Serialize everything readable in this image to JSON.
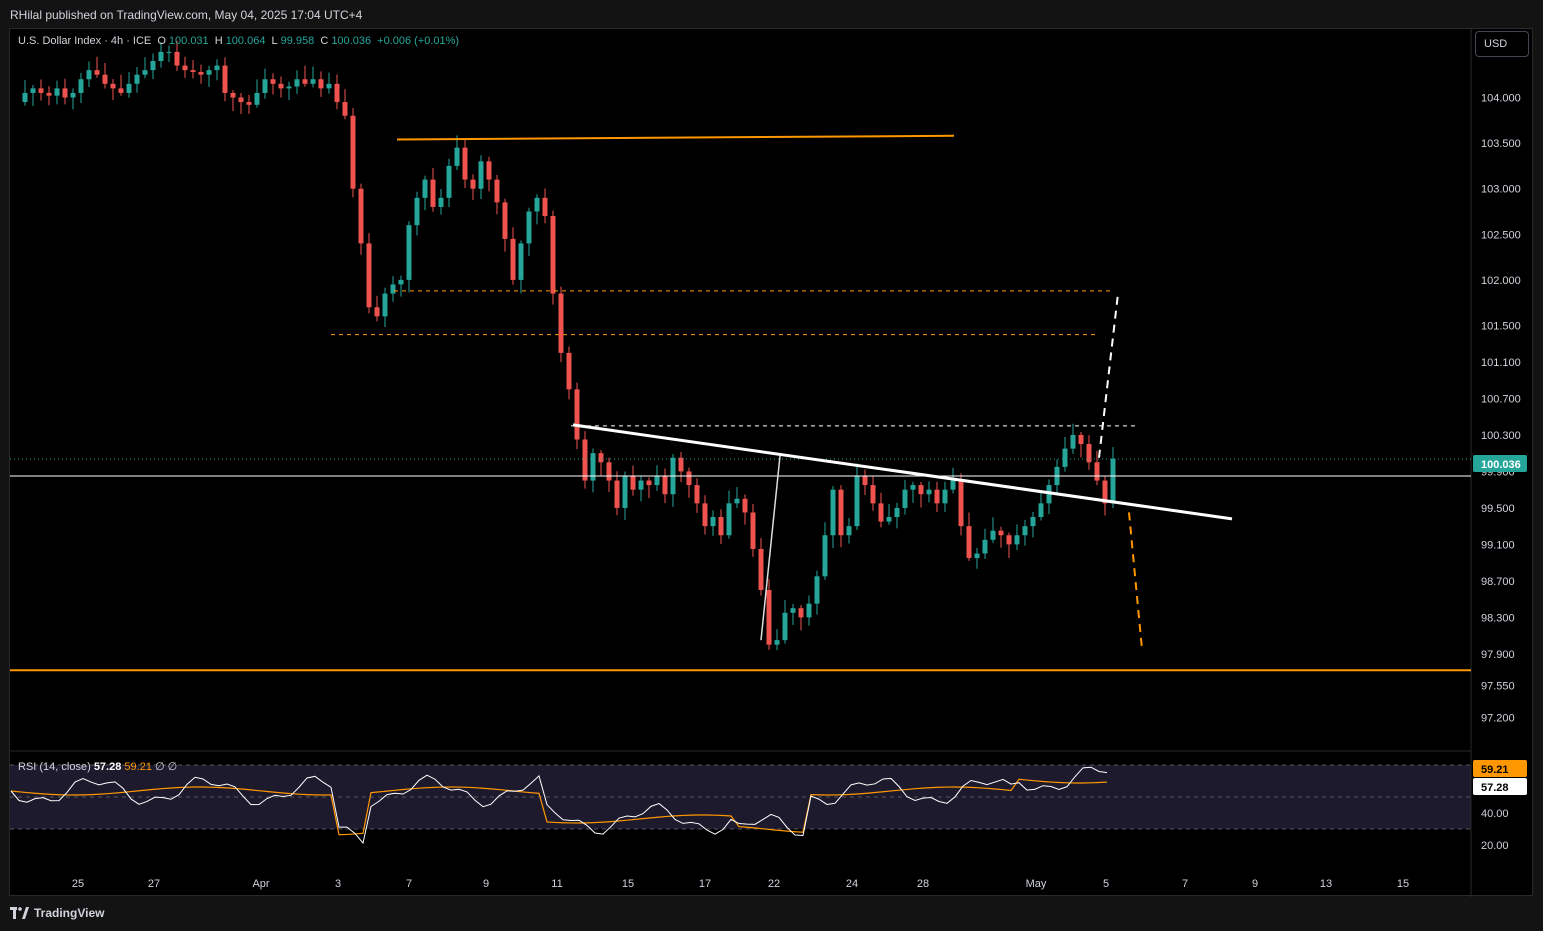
{
  "header": {
    "published": "RHilal published on TradingView.com, May 04, 2025 17:04 UTC+4"
  },
  "legend": {
    "symbol": "U.S. Dollar Index · 4h · ICE",
    "o_label": "O",
    "o": "100.031",
    "h_label": "H",
    "h": "100.064",
    "l_label": "L",
    "l": "99.958",
    "c_label": "C",
    "c": "100.036",
    "change": "+0.006 (+0.01%)"
  },
  "currency_button": "USD",
  "rsi_legend": {
    "label": "RSI (14, close)",
    "value": "57.28",
    "ma_value": "59.21",
    "extra": "∅ ∅"
  },
  "footer": {
    "brand": "TradingView"
  },
  "colors": {
    "up": "#26a69a",
    "down": "#ef5350",
    "orange": "#ff9800",
    "white": "#ffffff",
    "rsi_band": "#1e1a2e",
    "bg": "#000000"
  },
  "chart_data": {
    "type": "candlestick",
    "price_axis_labels": [
      "104.000",
      "103.500",
      "103.000",
      "102.500",
      "102.000",
      "101.500",
      "101.100",
      "100.700",
      "100.300",
      "99.900",
      "99.500",
      "99.100",
      "98.700",
      "98.300",
      "97.900",
      "97.550",
      "97.200"
    ],
    "time_axis_labels": [
      "25",
      "27",
      "Apr",
      "3",
      "7",
      "9",
      "11",
      "15",
      "17",
      "22",
      "24",
      "28",
      "May",
      "5",
      "7",
      "9",
      "13",
      "15"
    ],
    "current_price": "100.036",
    "rsi_axis_labels": [
      "40.00",
      "20.00"
    ],
    "rsi_value_label": "57.28",
    "rsi_ma_label": "59.21",
    "drawings": {
      "orange_top_level": 103.55,
      "orange_bottom_level": 97.72,
      "dashed_orange_1": 101.88,
      "dashed_orange_2": 101.4,
      "dashed_white_level": 100.4,
      "horizontal_white_level": 99.85
    },
    "candle_path": [
      [
        0,
        103.95
      ],
      [
        8,
        104.05
      ],
      [
        16,
        104.1
      ],
      [
        24,
        104.05
      ],
      [
        32,
        104.02
      ],
      [
        40,
        104.1
      ],
      [
        48,
        104.0
      ],
      [
        56,
        104.05
      ],
      [
        64,
        104.2
      ],
      [
        72,
        104.3
      ],
      [
        80,
        104.25
      ],
      [
        88,
        104.15
      ],
      [
        96,
        104.1
      ],
      [
        104,
        104.05
      ],
      [
        112,
        104.15
      ],
      [
        120,
        104.25
      ],
      [
        128,
        104.3
      ],
      [
        136,
        104.4
      ],
      [
        144,
        104.5
      ],
      [
        152,
        104.5
      ],
      [
        160,
        104.35
      ],
      [
        168,
        104.3
      ],
      [
        176,
        104.28
      ],
      [
        184,
        104.25
      ],
      [
        192,
        104.3
      ],
      [
        200,
        104.35
      ],
      [
        208,
        104.05
      ],
      [
        216,
        104.0
      ],
      [
        224,
        103.95
      ],
      [
        232,
        103.92
      ],
      [
        240,
        104.05
      ],
      [
        248,
        104.2
      ],
      [
        256,
        104.15
      ],
      [
        264,
        104.1
      ],
      [
        272,
        104.12
      ],
      [
        280,
        104.2
      ],
      [
        288,
        104.15
      ],
      [
        296,
        104.2
      ],
      [
        304,
        104.1
      ],
      [
        312,
        104.15
      ],
      [
        320,
        103.95
      ],
      [
        328,
        103.8
      ],
      [
        336,
        103.0
      ],
      [
        344,
        102.4
      ],
      [
        352,
        101.7
      ],
      [
        360,
        101.6
      ],
      [
        368,
        101.85
      ],
      [
        376,
        101.95
      ],
      [
        384,
        102.0
      ],
      [
        392,
        102.6
      ],
      [
        400,
        102.9
      ],
      [
        408,
        103.1
      ],
      [
        416,
        102.8
      ],
      [
        424,
        102.9
      ],
      [
        432,
        103.25
      ],
      [
        440,
        103.45
      ],
      [
        448,
        103.1
      ],
      [
        456,
        103.0
      ],
      [
        464,
        103.3
      ],
      [
        472,
        103.1
      ],
      [
        480,
        102.85
      ],
      [
        488,
        102.45
      ],
      [
        496,
        102.0
      ],
      [
        504,
        102.4
      ],
      [
        512,
        102.75
      ],
      [
        520,
        102.9
      ],
      [
        528,
        102.7
      ],
      [
        536,
        101.85
      ],
      [
        544,
        101.2
      ],
      [
        552,
        100.8
      ],
      [
        560,
        100.25
      ],
      [
        568,
        99.8
      ],
      [
        576,
        100.1
      ],
      [
        584,
        100.0
      ],
      [
        592,
        99.8
      ],
      [
        600,
        99.5
      ],
      [
        608,
        99.85
      ],
      [
        616,
        99.7
      ],
      [
        624,
        99.8
      ],
      [
        632,
        99.75
      ],
      [
        640,
        99.85
      ],
      [
        648,
        99.65
      ],
      [
        656,
        100.05
      ],
      [
        664,
        99.9
      ],
      [
        672,
        99.75
      ],
      [
        680,
        99.55
      ],
      [
        688,
        99.3
      ],
      [
        696,
        99.4
      ],
      [
        704,
        99.2
      ],
      [
        712,
        99.55
      ],
      [
        720,
        99.6
      ],
      [
        728,
        99.45
      ],
      [
        736,
        99.05
      ],
      [
        744,
        98.6
      ],
      [
        752,
        98.0
      ],
      [
        760,
        98.05
      ],
      [
        768,
        98.35
      ],
      [
        776,
        98.4
      ],
      [
        784,
        98.3
      ],
      [
        792,
        98.45
      ],
      [
        800,
        98.75
      ],
      [
        808,
        99.2
      ],
      [
        816,
        99.7
      ],
      [
        824,
        99.2
      ],
      [
        832,
        99.3
      ],
      [
        840,
        99.85
      ],
      [
        848,
        99.75
      ],
      [
        856,
        99.55
      ],
      [
        864,
        99.35
      ],
      [
        872,
        99.4
      ],
      [
        880,
        99.5
      ],
      [
        888,
        99.7
      ],
      [
        896,
        99.75
      ],
      [
        904,
        99.65
      ],
      [
        912,
        99.7
      ],
      [
        920,
        99.55
      ],
      [
        928,
        99.7
      ],
      [
        936,
        99.8
      ],
      [
        944,
        99.3
      ],
      [
        952,
        98.95
      ],
      [
        960,
        99.0
      ],
      [
        968,
        99.15
      ],
      [
        976,
        99.25
      ],
      [
        984,
        99.2
      ],
      [
        992,
        99.1
      ],
      [
        1000,
        99.2
      ],
      [
        1008,
        99.3
      ],
      [
        1016,
        99.4
      ],
      [
        1024,
        99.55
      ],
      [
        1032,
        99.75
      ],
      [
        1040,
        99.95
      ],
      [
        1048,
        100.15
      ],
      [
        1056,
        100.3
      ],
      [
        1064,
        100.2
      ],
      [
        1072,
        100.0
      ],
      [
        1080,
        99.8
      ],
      [
        1088,
        99.55
      ],
      [
        1096,
        100.04
      ]
    ]
  }
}
